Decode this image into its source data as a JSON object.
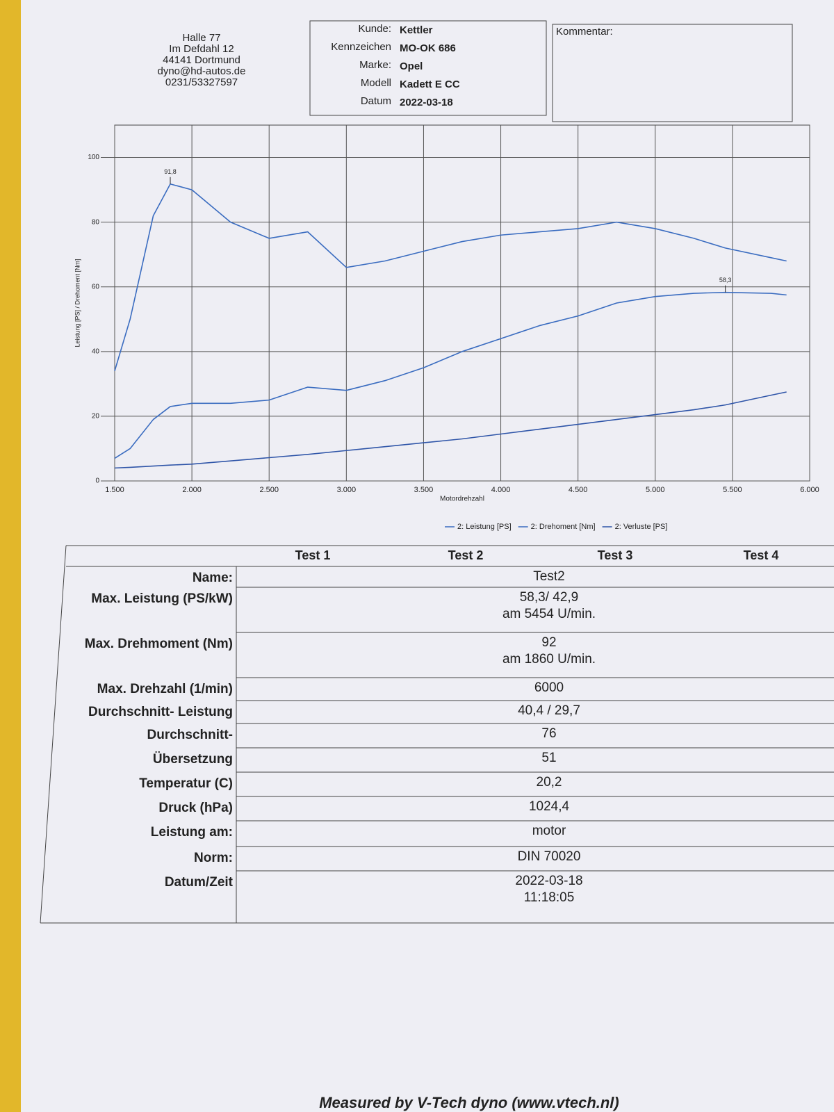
{
  "header": {
    "address": [
      "Halle 77",
      "Im Defdahl 12",
      "44141 Dortmund",
      "dyno@hd-autos.de",
      "0231/53327597"
    ],
    "fields": [
      {
        "label": "Kunde:",
        "value": "Kettler"
      },
      {
        "label": "Kennzeichen",
        "value": "MO-OK 686"
      },
      {
        "label": "Marke:",
        "value": "Opel"
      },
      {
        "label": "Modell",
        "value": "Kadett E CC"
      },
      {
        "label": "Datum",
        "value": "2022-03-18"
      }
    ],
    "comment_label": "Kommentar:"
  },
  "chart_data": {
    "type": "line",
    "x_label": "Motordrehzahl",
    "y_label": "Leistung [PS] / Drehoment [Nm]",
    "x": [
      1500,
      1600,
      1750,
      1860,
      2000,
      2250,
      2500,
      2750,
      3000,
      3250,
      3500,
      3750,
      4000,
      4250,
      4500,
      4750,
      5000,
      5250,
      5454,
      5750,
      5850
    ],
    "series": [
      {
        "name": "2: Leistung [PS]",
        "color": "#3a6cc0",
        "values": [
          7,
          10,
          19,
          23,
          24,
          24,
          25,
          29,
          28,
          31,
          35,
          40,
          44,
          48,
          51,
          55,
          57,
          58,
          58.3,
          58,
          57.5
        ],
        "value_labels": [
          null,
          null,
          null,
          null,
          null,
          null,
          null,
          null,
          null,
          null,
          null,
          null,
          null,
          null,
          null,
          null,
          null,
          null,
          "58,3",
          null,
          null
        ]
      },
      {
        "name": "2: Drehoment [Nm]",
        "color": "#3a6cc0",
        "values": [
          34,
          50,
          82,
          91.8,
          90,
          80,
          75,
          77,
          66,
          68,
          71,
          74,
          76,
          77,
          78,
          80,
          78,
          75,
          72,
          69,
          68
        ],
        "value_labels": [
          null,
          null,
          null,
          "91,8",
          null,
          null,
          null,
          null,
          null,
          null,
          null,
          null,
          null,
          null,
          null,
          null,
          null,
          null,
          null,
          null,
          null
        ]
      },
      {
        "name": "2: Verluste [PS]",
        "color": "#2f55a8",
        "values": [
          4,
          4.2,
          4.6,
          4.9,
          5.2,
          6.2,
          7.2,
          8.2,
          9.4,
          10.6,
          11.8,
          13,
          14.5,
          16,
          17.5,
          19,
          20.5,
          22,
          23.5,
          26.5,
          27.5
        ]
      }
    ],
    "xlim": [
      1500,
      6000
    ],
    "xticks": [
      {
        "value": 1500,
        "label": "1.500"
      },
      {
        "value": 2000,
        "label": "2.000"
      },
      {
        "value": 2500,
        "label": "2.500"
      },
      {
        "value": 3000,
        "label": "3.000"
      },
      {
        "value": 3500,
        "label": "3.500"
      },
      {
        "value": 4000,
        "label": "4.000"
      },
      {
        "value": 4500,
        "label": "4.500"
      },
      {
        "value": 5000,
        "label": "5.000"
      },
      {
        "value": 5500,
        "label": "5.500"
      },
      {
        "value": 6000,
        "label": "6.000"
      }
    ],
    "ylim": [
      0,
      110
    ],
    "yticks": [
      0,
      20,
      40,
      60,
      80,
      100
    ],
    "grid": true
  },
  "table": {
    "columns": [
      "Test 1",
      "Test 2",
      "Test 3",
      "Test 4"
    ],
    "rows": [
      {
        "label": "Name:",
        "value": [
          "Test2"
        ]
      },
      {
        "label": "Max. Leistung (PS/kW)",
        "value": [
          "58,3/ 42,9",
          "am 5454    U/min."
        ]
      },
      {
        "label": "Max. Drehmoment (Nm)",
        "value": [
          "92",
          "am 1860    U/min."
        ]
      },
      {
        "label": "Max. Drehzahl (1/min)",
        "value": [
          "6000"
        ]
      },
      {
        "label": "Durchschnitt- Leistung",
        "value": [
          "40,4 / 29,7"
        ]
      },
      {
        "label": "Durchschnitt-",
        "value": [
          "76"
        ]
      },
      {
        "label": "Übersetzung",
        "value": [
          "51"
        ]
      },
      {
        "label": "Temperatur (C)",
        "value": [
          "20,2"
        ]
      },
      {
        "label": "Druck (hPa)",
        "value": [
          "1024,4"
        ]
      },
      {
        "label": "Leistung am:",
        "value": [
          "motor"
        ]
      },
      {
        "label": "Norm:",
        "value": [
          "DIN 70020"
        ]
      },
      {
        "label": "Datum/Zeit",
        "value": [
          "2022-03-18",
          "11:18:05"
        ]
      }
    ]
  },
  "footer": "Measured by V-Tech dyno (www.vtech.nl)"
}
